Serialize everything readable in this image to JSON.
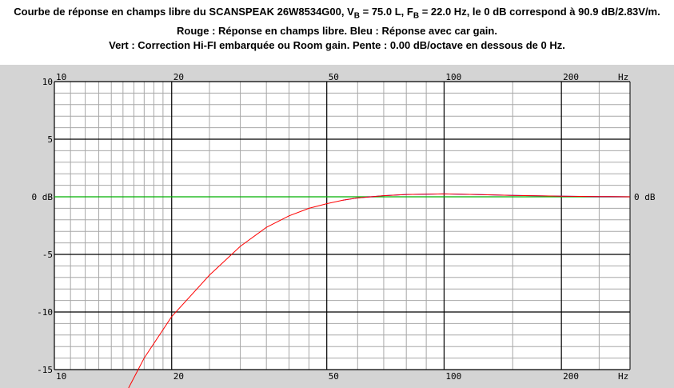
{
  "header": {
    "line1": {
      "prefix": "Courbe de réponse en champs libre du SCANSPEAK 26W8534G00, V",
      "vb_sub": "B",
      "vb_val": " = 75.0 L, F",
      "fb_sub": "B",
      "suffix": " = 22.0 Hz, le 0 dB correspond à 90.9 dB/2.83V/m."
    },
    "line2": "Rouge : Réponse en champs libre. Bleu : Réponse avec car gain.",
    "line3": "Vert : Correction Hi-FI embarquée ou Room gain. Pente : 0.00 dB/octave en dessous de 0 Hz."
  },
  "chart_data": {
    "type": "line",
    "x_scale": "log",
    "xlim": [
      10,
      300
    ],
    "ylim": [
      -15,
      10
    ],
    "grid": true,
    "x_ticks": [
      {
        "value": 10,
        "label": "10"
      },
      {
        "value": 20,
        "label": "20"
      },
      {
        "value": 50,
        "label": "50"
      },
      {
        "value": 100,
        "label": "100"
      },
      {
        "value": 200,
        "label": "200"
      }
    ],
    "x_unit_label": "Hz",
    "y_ticks": [
      {
        "value": 10,
        "label": "10"
      },
      {
        "value": 5,
        "label": "5"
      },
      {
        "value": 0,
        "label": "0 dB"
      },
      {
        "value": -5,
        "label": "-5"
      },
      {
        "value": -10,
        "label": "-10"
      },
      {
        "value": -15,
        "label": "-15"
      }
    ],
    "y_right_label": "0 dB",
    "colors": {
      "red": "#ff0000",
      "blue": "#0000ff",
      "green": "#00dd00"
    },
    "series": [
      {
        "color": "#ff0000",
        "x": [
          15.5,
          17,
          20,
          25,
          30,
          35,
          40,
          45,
          50,
          55,
          60,
          70,
          80,
          100,
          120,
          150,
          200,
          250,
          300
        ],
        "y": [
          -16.6,
          -14.0,
          -10.4,
          -6.8,
          -4.3,
          -2.65,
          -1.65,
          -1.0,
          -0.6,
          -0.3,
          -0.1,
          0.1,
          0.2,
          0.25,
          0.2,
          0.12,
          0.05,
          0.02,
          0.0
        ]
      },
      {
        "color": "#0000ff",
        "x": [
          55,
          60,
          70,
          80,
          100,
          120,
          150,
          200,
          250,
          300
        ],
        "y": [
          -0.3,
          -0.1,
          0.1,
          0.2,
          0.25,
          0.2,
          0.12,
          0.05,
          0.02,
          0.0
        ]
      },
      {
        "color": "#00dd00",
        "x": [
          10,
          300
        ],
        "y": [
          0,
          0
        ]
      }
    ]
  }
}
